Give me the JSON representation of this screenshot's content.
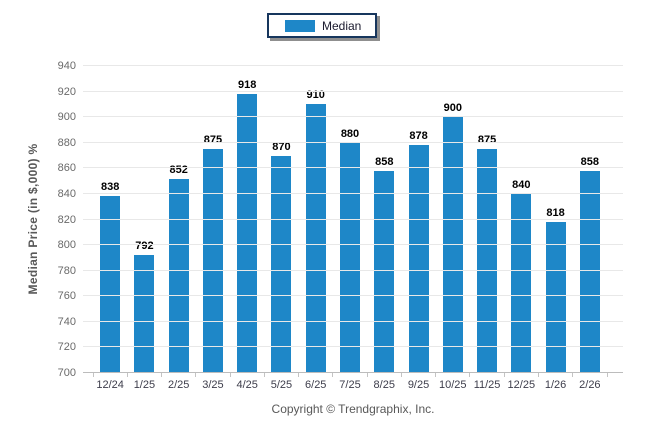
{
  "legend": {
    "label": "Median",
    "swatch_icon": "legend-swatch",
    "swatch_color": "#1e87c8",
    "border_color": "#17365d"
  },
  "footer": {
    "copyright": "Copyright © Trendgraphix, Inc."
  },
  "colors": {
    "bar": "#1e87c8",
    "gridline": "#e8e8e8",
    "axis_line": "#bcbcbc",
    "value_label": "#000000",
    "y_tick_label": "#6a6a6a",
    "x_tick_label": "#3d3d4b",
    "axis_title": "#595959"
  },
  "chart_data": {
    "type": "bar",
    "series_name": "Median",
    "categories": [
      "12/24",
      "1/25",
      "2/25",
      "3/25",
      "4/25",
      "5/25",
      "6/25",
      "7/25",
      "8/25",
      "9/25",
      "10/25",
      "11/25",
      "12/25",
      "1/26",
      "2/26"
    ],
    "values": [
      838,
      792,
      852,
      875,
      918,
      870,
      910,
      880,
      858,
      878,
      900,
      875,
      840,
      818,
      858
    ],
    "title": "",
    "xlabel": "",
    "ylabel": "Median Price (in $,000) %",
    "ylim": [
      700,
      940
    ],
    "ytick_step": 20,
    "grid": true,
    "legend_position": "top-center",
    "bar_color": "#1e87c8"
  }
}
